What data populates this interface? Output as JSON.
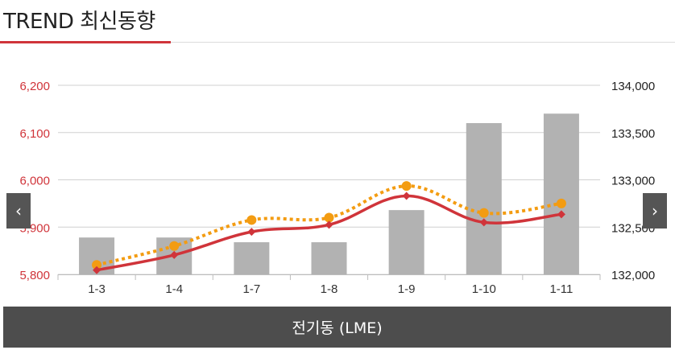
{
  "header": {
    "title": "TREND 최신동향"
  },
  "nav": {
    "prev_icon": "‹",
    "next_icon": "›"
  },
  "footer": {
    "label": "전기동 (LME)"
  },
  "colors": {
    "accent": "#d0343a",
    "bar": "#b2b2b2",
    "dotted": "#f39c12"
  },
  "chart_data": {
    "type": "bar",
    "categories": [
      "1-3",
      "1-4",
      "1-7",
      "1-8",
      "1-9",
      "1-10",
      "1-11"
    ],
    "y_left": {
      "ticks": [
        "6,200",
        "6,100",
        "6,000",
        "5,900",
        "5,800"
      ],
      "ylim": [
        5800,
        6200
      ]
    },
    "y_right": {
      "ticks": [
        "134,000",
        "133,500",
        "133,000",
        "132,500",
        "132,000"
      ],
      "ylim": [
        132000,
        134000
      ]
    },
    "series": [
      {
        "type": "bar",
        "axis": "right",
        "values": [
          132390,
          132390,
          132340,
          132340,
          132680,
          133600,
          133700
        ]
      },
      {
        "type": "line",
        "axis": "left",
        "style": "solid",
        "values": [
          5809,
          5841,
          5890,
          5905,
          5966,
          5910,
          5927
        ]
      },
      {
        "type": "line",
        "axis": "left",
        "style": "dotted",
        "values": [
          5820,
          5860,
          5915,
          5920,
          5987,
          5930,
          5950
        ]
      }
    ],
    "grid": true
  }
}
